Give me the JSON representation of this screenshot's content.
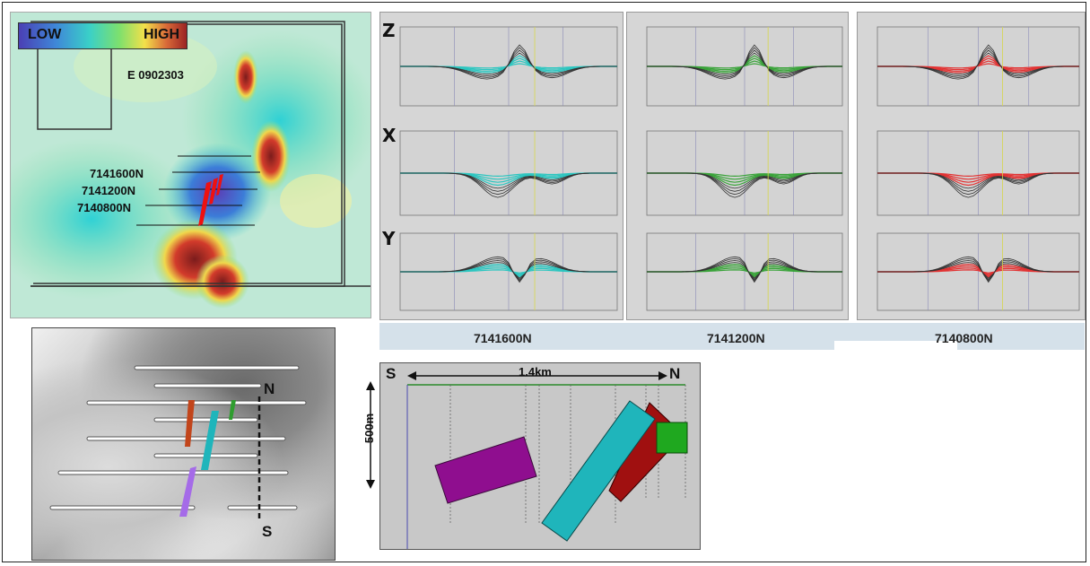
{
  "legend": {
    "low": "LOW",
    "high": "HIGH"
  },
  "map": {
    "claim": "E 0902303",
    "lines": [
      "7141600N",
      "7141200N",
      "7140800N"
    ]
  },
  "em_panels": {
    "components": [
      "Z",
      "X",
      "Y"
    ],
    "captions": [
      "7141600N",
      "7141200N",
      "7140800N"
    ],
    "series_colors": [
      "#2cc6c0",
      "#3aa33a",
      "#e23333"
    ]
  },
  "shaded_map": {
    "north": "N",
    "south": "S"
  },
  "cross_section": {
    "south": "S",
    "north": "N",
    "distance": "1.4km",
    "depth": "500m",
    "colors": {
      "purple": "#8f0e8f",
      "cyan": "#1fb5bb",
      "red": "#a01010",
      "green": "#1fa81f"
    }
  }
}
